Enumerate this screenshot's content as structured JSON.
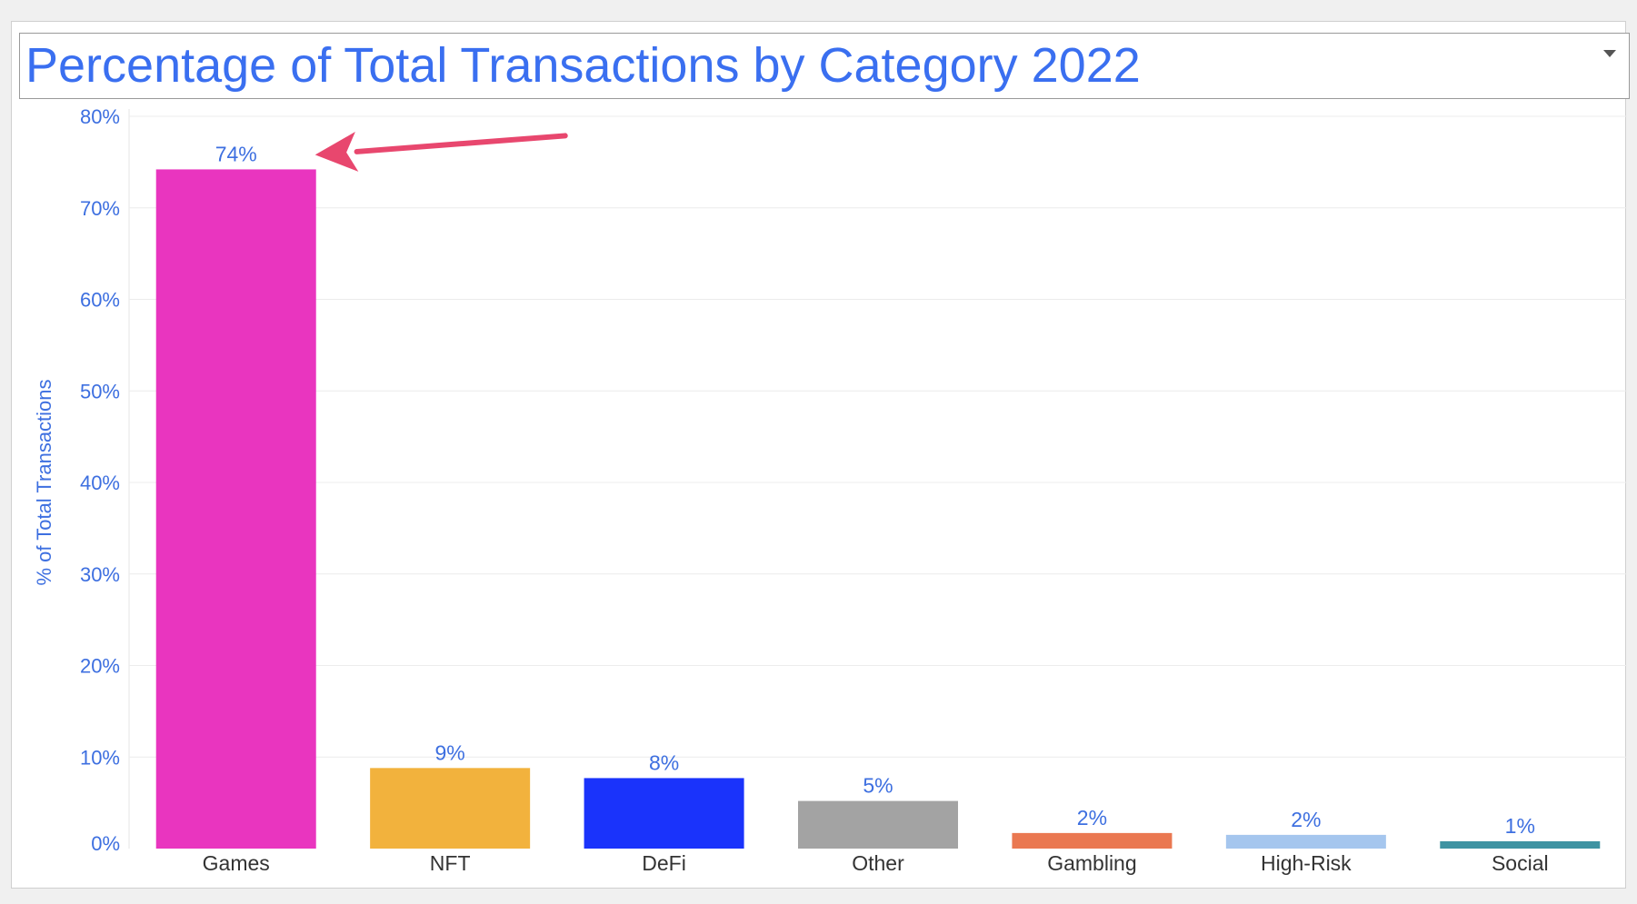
{
  "colors": {
    "axis_text": "#3d6fe0",
    "category_text": "#333333",
    "title_text": "#3a6ff0",
    "gridline": "#ececec",
    "arrow": "#e8476e"
  },
  "header": {
    "title": "Percentage of Total Transactions by Category 2022",
    "menu_icon": "chevron-down-icon"
  },
  "chart_data": {
    "type": "bar",
    "title": "Percentage of Total Transactions by Category 2022",
    "xlabel": "",
    "ylabel": "% of Total Transactions",
    "ylim": [
      0,
      80
    ],
    "yticks": [
      "0%",
      "10%",
      "20%",
      "30%",
      "40%",
      "50%",
      "60%",
      "70%",
      "80%"
    ],
    "ytick_values": [
      0,
      10,
      20,
      30,
      40,
      50,
      60,
      70,
      80
    ],
    "grid": true,
    "categories": [
      "Games",
      "NFT",
      "DeFi",
      "Other",
      "Gambling",
      "High-Risk",
      "Social"
    ],
    "values": [
      74.2,
      8.8,
      7.7,
      5.2,
      1.7,
      1.5,
      0.8
    ],
    "data_labels": [
      "74%",
      "9%",
      "8%",
      "5%",
      "2%",
      "2%",
      "1%"
    ],
    "bar_colors": [
      "#e935bf",
      "#f2b23d",
      "#1a33fb",
      "#a3a3a3",
      "#ea7851",
      "#a5c6ee",
      "#3e93a2"
    ],
    "annotations": [
      {
        "type": "arrow",
        "target_category": "Games",
        "text": ""
      }
    ]
  }
}
